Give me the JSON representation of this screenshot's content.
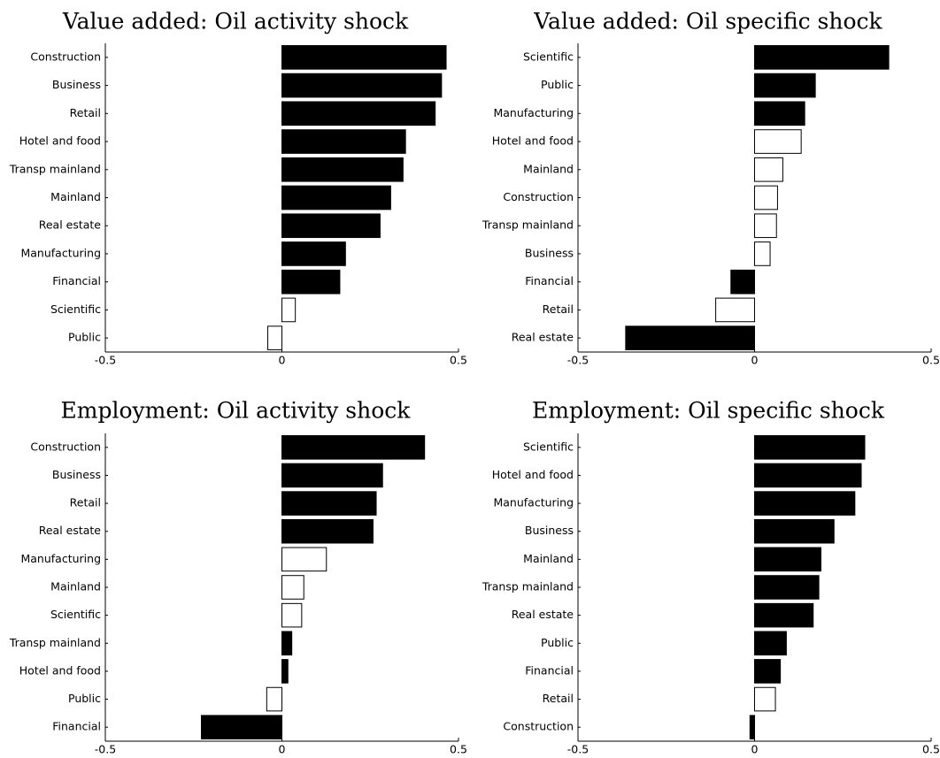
{
  "colors": {
    "significant_fill": "#000000",
    "insignificant_fill": "#ffffff",
    "bar_stroke": "#000000",
    "axis": "#000000"
  },
  "chart_data": [
    {
      "type": "bar",
      "orientation": "horizontal",
      "title": "Value added: Oil activity shock",
      "xlim": [
        -0.5,
        0.5
      ],
      "xticks": [
        "-0.5",
        "0",
        "0.5"
      ],
      "grid": false,
      "categories": [
        "Construction",
        "Business",
        "Retail",
        "Hotel and food",
        "Transp mainland",
        "Mainland",
        "Real estate",
        "Manufacturing",
        "Financial",
        "Scientific",
        "Public"
      ],
      "values": [
        0.465,
        0.452,
        0.434,
        0.35,
        0.343,
        0.308,
        0.278,
        0.18,
        0.164,
        0.038,
        -0.04
      ],
      "filled": [
        true,
        true,
        true,
        true,
        true,
        true,
        true,
        true,
        true,
        false,
        false
      ]
    },
    {
      "type": "bar",
      "orientation": "horizontal",
      "title": "Value added: Oil specific shock",
      "xlim": [
        -0.5,
        0.5
      ],
      "xticks": [
        "-0.5",
        "0",
        "0.5"
      ],
      "grid": false,
      "categories": [
        "Scientific",
        "Public",
        "Manufacturing",
        "Hotel and food",
        "Mainland",
        "Construction",
        "Transp mainland",
        "Business",
        "Financial",
        "Retail",
        "Real estate"
      ],
      "values": [
        0.38,
        0.172,
        0.142,
        0.132,
        0.08,
        0.065,
        0.062,
        0.044,
        -0.067,
        -0.11,
        -0.365
      ],
      "filled": [
        true,
        true,
        true,
        false,
        false,
        false,
        false,
        false,
        true,
        false,
        true
      ]
    },
    {
      "type": "bar",
      "orientation": "horizontal",
      "title": "Employment: Oil activity shock",
      "xlim": [
        -0.5,
        0.5
      ],
      "xticks": [
        "-0.5",
        "0",
        "0.5"
      ],
      "grid": false,
      "categories": [
        "Construction",
        "Business",
        "Retail",
        "Real estate",
        "Manufacturing",
        "Mainland",
        "Scientific",
        "Transp mainland",
        "Hotel and food",
        "Public",
        "Financial"
      ],
      "values": [
        0.404,
        0.285,
        0.267,
        0.258,
        0.126,
        0.062,
        0.056,
        0.028,
        0.017,
        -0.043,
        -0.228
      ],
      "filled": [
        true,
        true,
        true,
        true,
        false,
        false,
        false,
        true,
        true,
        false,
        true
      ]
    },
    {
      "type": "bar",
      "orientation": "horizontal",
      "title": "Employment: Oil specific shock",
      "xlim": [
        -0.5,
        0.5
      ],
      "xticks": [
        "-0.5",
        "0",
        "0.5"
      ],
      "grid": false,
      "categories": [
        "Scientific",
        "Hotel and food",
        "Manufacturing",
        "Business",
        "Mainland",
        "Transp mainland",
        "Real estate",
        "Public",
        "Financial",
        "Retail",
        "Construction"
      ],
      "values": [
        0.312,
        0.302,
        0.284,
        0.225,
        0.188,
        0.182,
        0.166,
        0.09,
        0.073,
        0.059,
        -0.013
      ],
      "filled": [
        true,
        true,
        true,
        true,
        true,
        true,
        true,
        true,
        true,
        false,
        true
      ]
    }
  ]
}
